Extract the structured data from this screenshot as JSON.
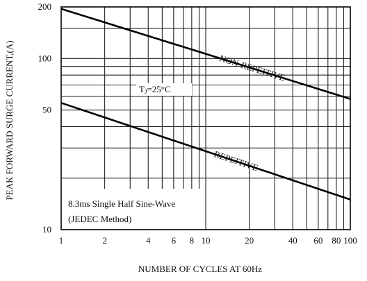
{
  "chart_data": {
    "type": "line",
    "xlabel": "NUMBER OF CYCLES AT 60Hz",
    "ylabel": "PEAK FORWARD SURGE CURRENT,(A)",
    "x_scale": "log",
    "y_scale": "log",
    "xlim": [
      1,
      100
    ],
    "ylim": [
      10,
      200
    ],
    "x_ticks": [
      {
        "value": 1,
        "label": "1"
      },
      {
        "value": 2,
        "label": "2"
      },
      {
        "value": 4,
        "label": "4"
      },
      {
        "value": 6,
        "label": "6"
      },
      {
        "value": 8,
        "label": "8"
      },
      {
        "value": 10,
        "label": "10"
      },
      {
        "value": 20,
        "label": "20"
      },
      {
        "value": 40,
        "label": "40"
      },
      {
        "value": 60,
        "label": "60"
      },
      {
        "value": 80,
        "label": "80"
      },
      {
        "value": 100,
        "label": "100"
      }
    ],
    "y_ticks": [
      {
        "value": 10,
        "label": "10"
      },
      {
        "value": 50,
        "label": "50"
      },
      {
        "value": 100,
        "label": "100"
      },
      {
        "value": 200,
        "label": "200"
      }
    ],
    "grid": true,
    "series": [
      {
        "name": "NON-REPEITIVE",
        "x": [
          1,
          100
        ],
        "y": [
          195,
          58
        ]
      },
      {
        "name": "REPEITIVE",
        "x": [
          1,
          100
        ],
        "y": [
          55,
          15
        ]
      }
    ],
    "annotations": [
      {
        "id": "tj",
        "main": "T",
        "sub": "J",
        "rest": "=25°C"
      },
      {
        "id": "note1",
        "text": "8.3ms Single Half Sine-Wave"
      },
      {
        "id": "note2",
        "text": "(JEDEC Method)"
      }
    ]
  }
}
